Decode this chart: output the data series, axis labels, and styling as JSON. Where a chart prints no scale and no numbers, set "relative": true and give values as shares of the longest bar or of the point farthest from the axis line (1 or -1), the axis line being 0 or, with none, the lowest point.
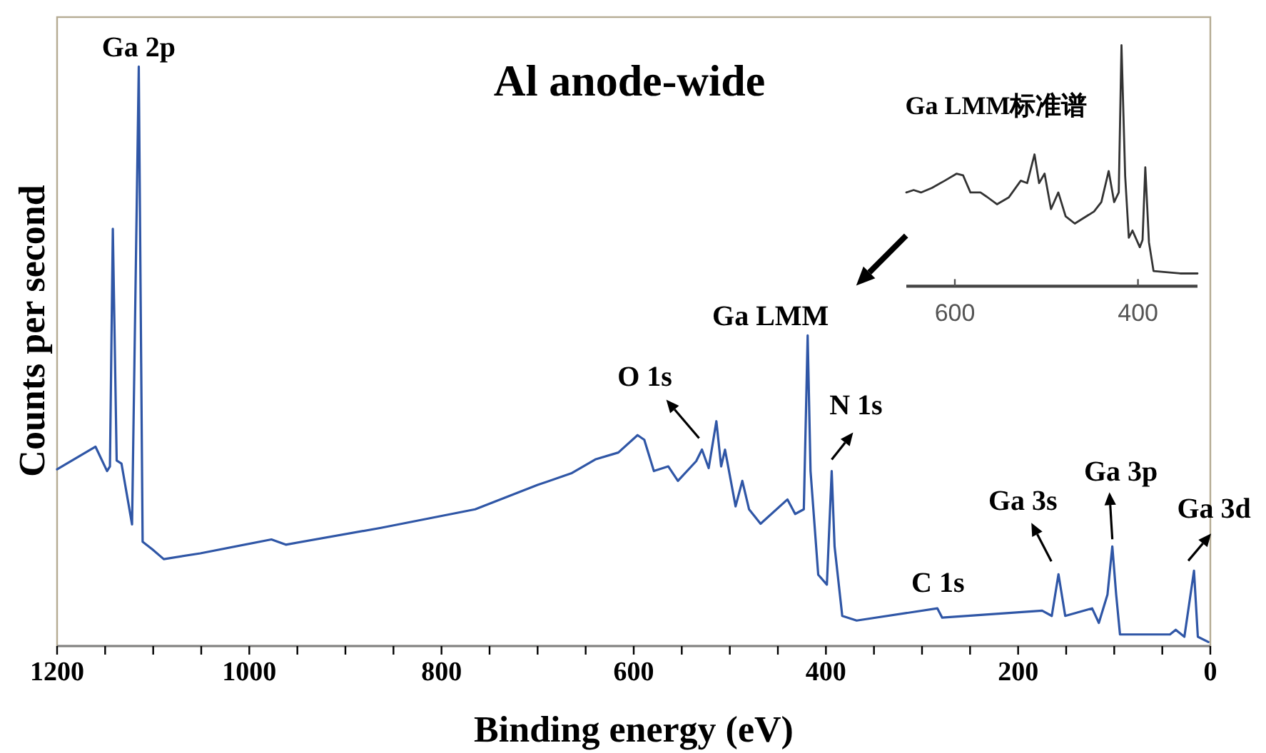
{
  "chart_data": [
    {
      "type": "line",
      "title": "Al anode-wide",
      "xlabel": "Binding energy (eV)",
      "ylabel": "Counts per second",
      "relative": true,
      "color": "#2f56a6",
      "x": [
        1200,
        1160,
        1148,
        1145,
        1142,
        1138,
        1133,
        1122,
        1115,
        1111,
        1101,
        1089,
        1051,
        977,
        962,
        863,
        765,
        700,
        665,
        640,
        616,
        596,
        589,
        579,
        564,
        554,
        535,
        529,
        522,
        514,
        509,
        505,
        494,
        487,
        480,
        468,
        440,
        432,
        423,
        419,
        416,
        408,
        399,
        394,
        391,
        383,
        368,
        284,
        279,
        175,
        165,
        158,
        151,
        123,
        116,
        107,
        102,
        98,
        94,
        42,
        36,
        27,
        17,
        13,
        2
      ],
      "values": [
        0.305,
        0.344,
        0.302,
        0.31,
        0.72,
        0.32,
        0.315,
        0.21,
        1.0,
        0.18,
        0.167,
        0.15,
        0.16,
        0.184,
        0.175,
        0.204,
        0.236,
        0.278,
        0.298,
        0.322,
        0.334,
        0.364,
        0.356,
        0.302,
        0.31,
        0.285,
        0.319,
        0.339,
        0.307,
        0.388,
        0.31,
        0.339,
        0.241,
        0.285,
        0.236,
        0.211,
        0.253,
        0.228,
        0.236,
        0.536,
        0.302,
        0.123,
        0.106,
        0.302,
        0.172,
        0.052,
        0.044,
        0.065,
        0.049,
        0.061,
        0.052,
        0.124,
        0.052,
        0.065,
        0.04,
        0.089,
        0.172,
        0.089,
        0.02,
        0.02,
        0.028,
        0.016,
        0.13,
        0.016,
        0.007
      ],
      "xlim": [
        1200,
        0
      ],
      "xticks": [
        1200,
        {
          "value": 1150,
          "label": null
        },
        {
          "value": 1100,
          "label": null
        },
        {
          "value": 1050,
          "label": null
        },
        1000,
        {
          "value": 950,
          "label": null
        },
        {
          "value": 900,
          "label": null
        },
        {
          "value": 850,
          "label": null
        },
        800,
        {
          "value": 750,
          "label": null
        },
        {
          "value": 700,
          "label": null
        },
        {
          "value": 650,
          "label": null
        },
        600,
        {
          "value": 550,
          "label": null
        },
        {
          "value": 500,
          "label": null
        },
        {
          "value": 450,
          "label": null
        },
        400,
        {
          "value": 350,
          "label": null
        },
        {
          "value": 300,
          "label": null
        },
        {
          "value": 250,
          "label": null
        },
        200,
        {
          "value": 150,
          "label": null
        },
        {
          "value": 100,
          "label": null
        },
        {
          "value": 50,
          "label": null
        },
        0
      ],
      "annotations": [
        {
          "text": "Ga 2p",
          "x": 1115,
          "y": 1.0
        },
        {
          "text": "O 1s",
          "x": 529,
          "y": 0.339
        },
        {
          "text": "Ga LMM",
          "x": 419,
          "y": 0.536
        },
        {
          "text": "N 1s",
          "x": 394,
          "y": 0.302
        },
        {
          "text": "C 1s",
          "x": 279,
          "y": 0.049
        },
        {
          "text": "Ga 3s",
          "x": 158,
          "y": 0.124
        },
        {
          "text": "Ga 3p",
          "x": 102,
          "y": 0.172
        },
        {
          "text": "Ga 3d",
          "x": 17,
          "y": 0.13
        }
      ]
    },
    {
      "type": "line",
      "title": "Ga LMM标准谱",
      "relative": true,
      "color": "#333333",
      "x": [
        653,
        645,
        637,
        625,
        611,
        598,
        591,
        583,
        572,
        565,
        554,
        541,
        528,
        521,
        513,
        508,
        502,
        495,
        487,
        479,
        469,
        448,
        440,
        432,
        426,
        421,
        418,
        414,
        410,
        406,
        398,
        395,
        392,
        388,
        383,
        354,
        335
      ],
      "values": [
        0.389,
        0.399,
        0.389,
        0.408,
        0.438,
        0.467,
        0.46,
        0.389,
        0.389,
        0.371,
        0.34,
        0.369,
        0.438,
        0.428,
        0.547,
        0.428,
        0.467,
        0.32,
        0.389,
        0.29,
        0.26,
        0.31,
        0.349,
        0.478,
        0.349,
        0.389,
        1.0,
        0.458,
        0.201,
        0.231,
        0.162,
        0.192,
        0.493,
        0.182,
        0.063,
        0.053,
        0.053
      ],
      "xlim": [
        653,
        335
      ],
      "xticks": [
        600,
        400
      ]
    }
  ]
}
